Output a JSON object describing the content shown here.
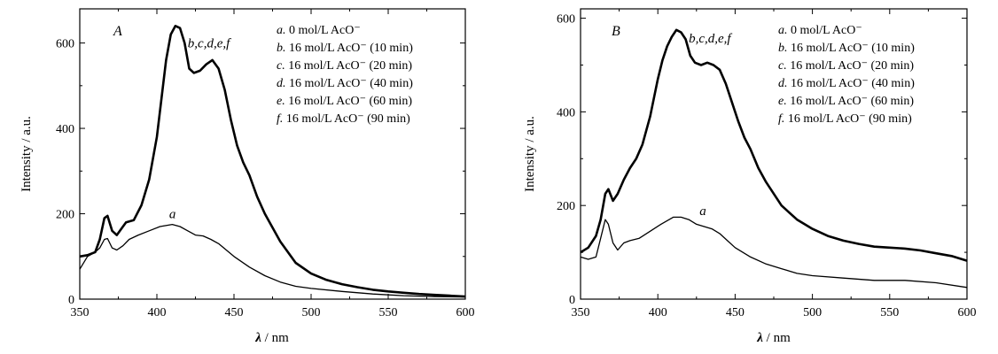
{
  "chart_data": [
    {
      "type": "line",
      "panel_label": "A",
      "xlabel_symbol": "λ",
      "xlabel_unit": "/ nm",
      "ylabel": "Intensity / a.u.",
      "xlim": [
        350,
        600
      ],
      "ylim": [
        0,
        680
      ],
      "xticks": [
        "350",
        "400",
        "450",
        "500",
        "550",
        "600"
      ],
      "yticks": [
        "0",
        "200",
        "400",
        "600"
      ],
      "xtick_values": [
        350,
        400,
        450,
        500,
        550,
        600
      ],
      "ytick_values": [
        0,
        200,
        400,
        600
      ],
      "legend": [
        {
          "letter": "a.",
          "text": "0 mol/L AcO⁻"
        },
        {
          "letter": "b.",
          "text": "16 mol/L AcO⁻ (10 min)"
        },
        {
          "letter": "c.",
          "text": "16 mol/L AcO⁻ (20 min)"
        },
        {
          "letter": "d.",
          "text": "16 mol/L AcO⁻ (40 min)"
        },
        {
          "letter": "e.",
          "text": "16 mol/L AcO⁻ (60 min)"
        },
        {
          "letter": "f.",
          "text": "16 mol/L AcO⁻ (90 min)"
        }
      ],
      "annotations": [
        {
          "text": "b,c,d,e,f",
          "x": 420,
          "y": 590
        },
        {
          "text": "a",
          "x": 408,
          "y": 190
        }
      ],
      "series": [
        {
          "name": "a",
          "x": [
            350,
            355,
            360,
            363,
            366,
            368,
            371,
            374,
            378,
            382,
            388,
            395,
            402,
            410,
            415,
            420,
            425,
            430,
            435,
            440,
            445,
            450,
            460,
            470,
            480,
            490,
            500,
            520,
            540,
            560,
            580,
            600
          ],
          "y": [
            70,
            100,
            110,
            120,
            140,
            142,
            120,
            115,
            125,
            140,
            150,
            160,
            170,
            175,
            170,
            160,
            150,
            148,
            140,
            130,
            115,
            100,
            75,
            55,
            40,
            30,
            25,
            18,
            12,
            8,
            6,
            5
          ]
        },
        {
          "name": "b,c,d,e,f",
          "x": [
            350,
            355,
            360,
            363,
            366,
            368,
            371,
            374,
            377,
            380,
            385,
            390,
            395,
            400,
            403,
            406,
            409,
            412,
            415,
            418,
            421,
            424,
            428,
            432,
            436,
            440,
            444,
            448,
            452,
            456,
            460,
            465,
            470,
            480,
            490,
            500,
            510,
            520,
            530,
            540,
            550,
            560,
            570,
            580,
            590,
            600
          ],
          "y": [
            100,
            103,
            110,
            140,
            190,
            195,
            160,
            150,
            165,
            180,
            185,
            220,
            280,
            380,
            470,
            560,
            620,
            640,
            635,
            600,
            540,
            530,
            535,
            550,
            560,
            540,
            490,
            420,
            360,
            320,
            290,
            240,
            200,
            135,
            85,
            60,
            45,
            35,
            28,
            22,
            18,
            15,
            12,
            10,
            8,
            6
          ]
        }
      ]
    },
    {
      "type": "line",
      "panel_label": "B",
      "xlabel_symbol": "λ",
      "xlabel_unit": "/ nm",
      "ylabel": "Intensity / a.u.",
      "xlim": [
        350,
        600
      ],
      "ylim": [
        0,
        620
      ],
      "xticks": [
        "350",
        "400",
        "450",
        "500",
        "550",
        "600"
      ],
      "yticks": [
        "0",
        "200",
        "400",
        "600"
      ],
      "xtick_values": [
        350,
        400,
        450,
        500,
        550,
        600
      ],
      "ytick_values": [
        0,
        200,
        400,
        600
      ],
      "legend": [
        {
          "letter": "a.",
          "text": "0 mol/L AcO⁻"
        },
        {
          "letter": "b.",
          "text": "16 mol/L AcO⁻ (10 min)"
        },
        {
          "letter": "c.",
          "text": "16 mol/L AcO⁻ (20 min)"
        },
        {
          "letter": "d.",
          "text": "16 mol/L AcO⁻ (40 min)"
        },
        {
          "letter": "e.",
          "text": "16 mol/L AcO⁻ (60 min)"
        },
        {
          "letter": "f.",
          "text": "16 mol/L AcO⁻ (90 min)"
        }
      ],
      "annotations": [
        {
          "text": "b,c,d,e,f",
          "x": 420,
          "y": 548
        },
        {
          "text": "a",
          "x": 427,
          "y": 180
        }
      ],
      "series": [
        {
          "name": "a",
          "x": [
            350,
            355,
            360,
            363,
            366,
            368,
            371,
            374,
            378,
            382,
            388,
            395,
            402,
            410,
            415,
            420,
            425,
            430,
            435,
            440,
            445,
            450,
            460,
            470,
            480,
            490,
            500,
            520,
            540,
            560,
            580,
            600
          ],
          "y": [
            90,
            85,
            90,
            130,
            170,
            160,
            120,
            105,
            120,
            125,
            130,
            145,
            160,
            175,
            175,
            170,
            160,
            155,
            150,
            140,
            125,
            110,
            90,
            75,
            65,
            55,
            50,
            45,
            40,
            40,
            35,
            25
          ]
        },
        {
          "name": "b,c,d,e,f",
          "x": [
            350,
            355,
            360,
            363,
            366,
            368,
            371,
            374,
            378,
            382,
            386,
            390,
            395,
            400,
            403,
            406,
            409,
            412,
            415,
            418,
            421,
            424,
            428,
            432,
            436,
            440,
            444,
            448,
            452,
            456,
            460,
            465,
            470,
            480,
            490,
            500,
            510,
            520,
            530,
            540,
            550,
            560,
            570,
            580,
            590,
            600
          ],
          "y": [
            100,
            110,
            135,
            170,
            225,
            235,
            210,
            225,
            255,
            280,
            300,
            330,
            390,
            470,
            510,
            540,
            560,
            575,
            570,
            555,
            520,
            505,
            500,
            505,
            500,
            490,
            460,
            420,
            380,
            345,
            320,
            280,
            250,
            200,
            170,
            150,
            135,
            125,
            118,
            112,
            110,
            108,
            104,
            98,
            92,
            82
          ]
        }
      ]
    }
  ]
}
